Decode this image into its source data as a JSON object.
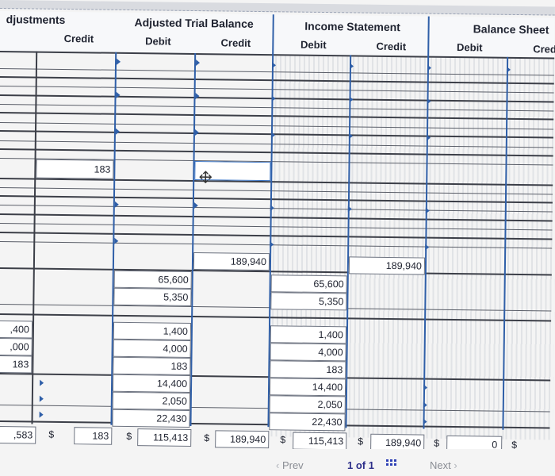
{
  "headers": {
    "adjustments": "djustments",
    "adjustments_credit": "Credit",
    "adjusted_trial_balance": "Adjusted Trial Balance",
    "atb_debit": "Debit",
    "atb_credit": "Credit",
    "income_statement": "Income Statement",
    "is_debit": "Debit",
    "is_credit": "Credit",
    "balance_sheet": "Balance Sheet",
    "bs_debit": "Debit",
    "bs_credit": "Cred"
  },
  "values": {
    "adj_credit_183": "183",
    "atb_credit_189940": "189,940",
    "is_credit_189940": "189,940",
    "atb_debit_65600": "65,600",
    "is_debit_65600": "65,600",
    "atb_debit_5350": "5,350",
    "is_debit_5350": "5,350",
    "adj_debit_1400": ",400",
    "adj_debit_4000": ",000",
    "adj_debit_183": "183",
    "atb_debit_1400": "1,400",
    "atb_debit_4000": "4,000",
    "atb_debit_183": "183",
    "atb_debit_14400": "14,400",
    "atb_debit_2050": "2,050",
    "atb_debit_22430": "22,430",
    "is_debit_1400": "1,400",
    "is_debit_4000": "4,000",
    "is_debit_183": "183",
    "is_debit_14400": "14,400",
    "is_debit_2050": "2,050",
    "is_debit_22430": "22,430"
  },
  "totals": {
    "adj_debit_total": ",583",
    "adj_credit_total": "183",
    "atb_debit_total": "115,413",
    "atb_credit_total": "189,940",
    "is_debit_total": "115,413",
    "is_credit_total": "189,940",
    "bs_debit_total": "0",
    "currency": "$"
  },
  "footer": {
    "prev_label": "Prev",
    "page_label": "1 of 1",
    "next_label": "Next"
  }
}
